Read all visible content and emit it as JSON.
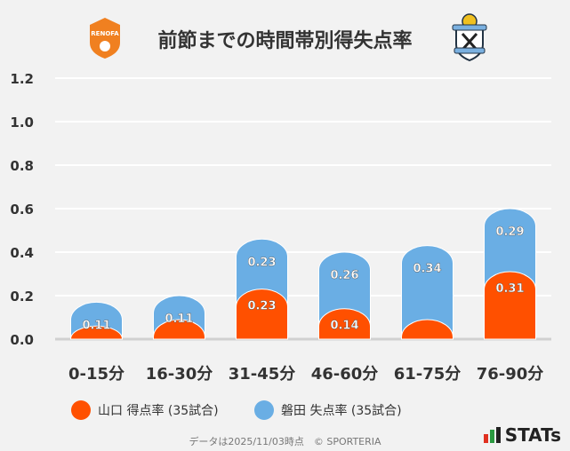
{
  "title": "前節までの時間帯別得失点率",
  "logos": {
    "left": "RENOFA",
    "right": "Jubilo Iwata crest"
  },
  "chart_data": {
    "type": "bar",
    "stacked": true,
    "categories": [
      "0-15分",
      "16-30分",
      "31-45分",
      "46-60分",
      "61-75分",
      "76-90分"
    ],
    "series": [
      {
        "name": "山口 得点率 (35試合)",
        "color": "#ff5000",
        "values": [
          0.06,
          0.09,
          0.23,
          0.14,
          0.09,
          0.31
        ],
        "labels": [
          "",
          "",
          "0.23",
          "0.14",
          "",
          "0.31"
        ]
      },
      {
        "name": "磐田 失点率 (35試合)",
        "color": "#6aaee4",
        "values": [
          0.11,
          0.11,
          0.23,
          0.26,
          0.34,
          0.29
        ],
        "labels": [
          "0.11",
          "0.11",
          "0.23",
          "0.26",
          "0.34",
          "0.29"
        ]
      }
    ],
    "yticks": [
      "0.0",
      "0.2",
      "0.4",
      "0.6",
      "0.8",
      "1.0",
      "1.2"
    ],
    "ylim": [
      0,
      1.2
    ],
    "grid": true
  },
  "footer": "データは2025/11/03時点　© SPORTERIA",
  "brand": "STATs"
}
